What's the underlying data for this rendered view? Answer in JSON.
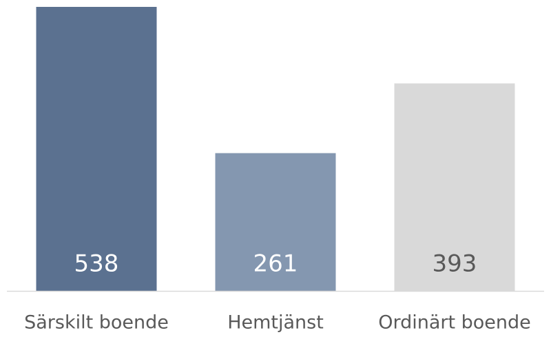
{
  "chart_data": {
    "type": "bar",
    "categories": [
      "Särskilt boende",
      "Hemtjänst",
      "Ordinärt boende"
    ],
    "values": [
      538,
      261,
      393
    ],
    "colors": [
      "#5b7190",
      "#8497b0",
      "#d9d9d9"
    ]
  }
}
